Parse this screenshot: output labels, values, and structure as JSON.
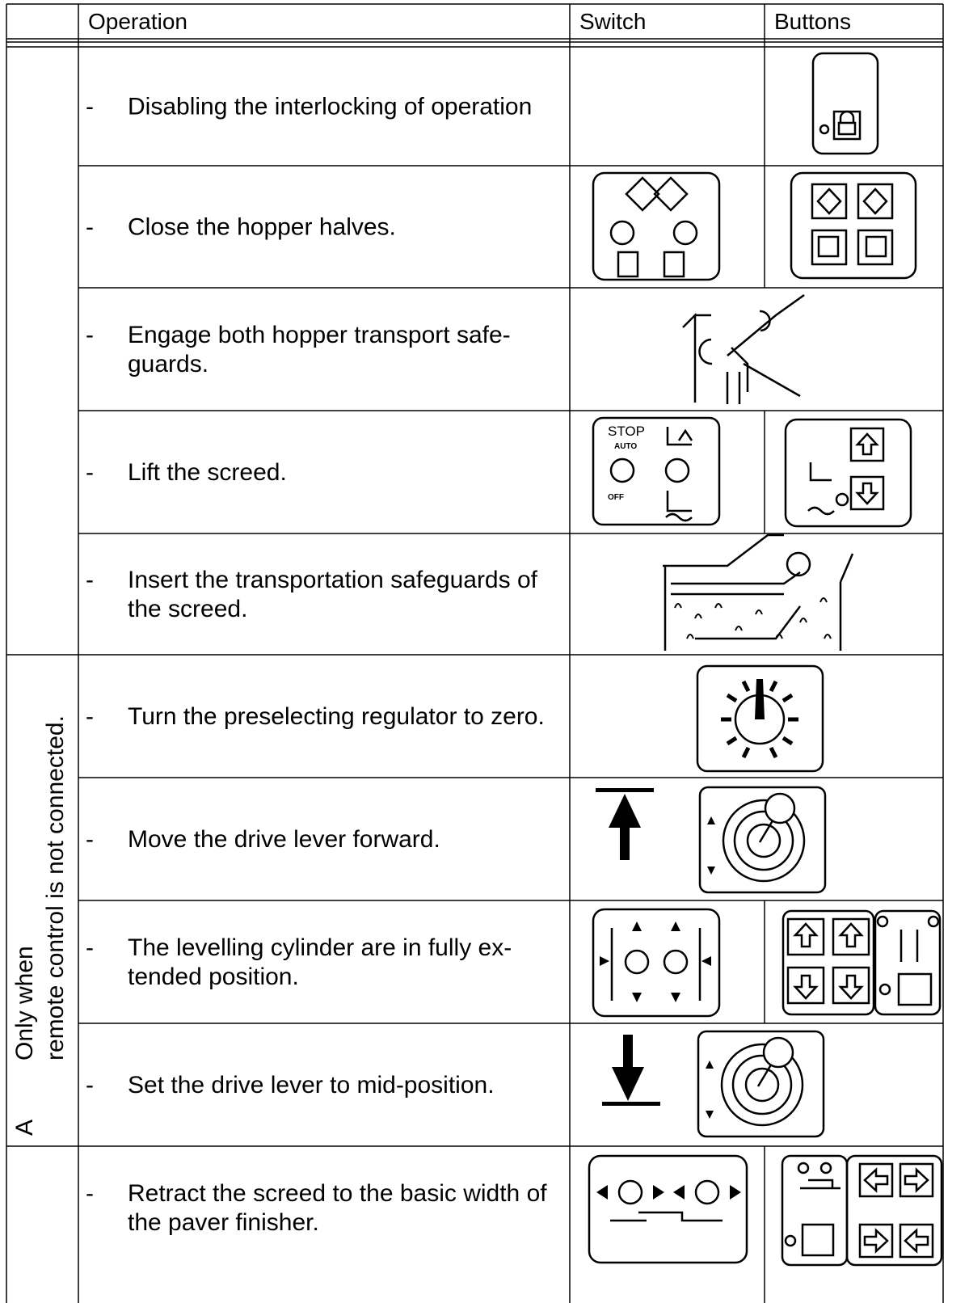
{
  "header": {
    "operation": "Operation",
    "switch": "Switch",
    "buttons": "Buttons"
  },
  "group_label": {
    "lines": [
      "Only when",
      "remote control is not connected."
    ],
    "marker": "A"
  },
  "rows": [
    {
      "bullet": "-",
      "lines": [
        "Disabling the interlocking of operation"
      ]
    },
    {
      "bullet": "-",
      "lines": [
        "Close the hopper halves."
      ]
    },
    {
      "bullet": "-",
      "lines": [
        "Engage both hopper transport safe-",
        "guards."
      ]
    },
    {
      "bullet": "-",
      "lines": [
        "Lift the screed."
      ]
    },
    {
      "bullet": "-",
      "lines": [
        "Insert the transportation safeguards of",
        "the screed."
      ]
    },
    {
      "bullet": "-",
      "lines": [
        "Turn the preselecting regulator to zero."
      ]
    },
    {
      "bullet": "-",
      "lines": [
        "Move the drive lever forward."
      ]
    },
    {
      "bullet": "-",
      "lines": [
        "The levelling cylinder are in fully ex-",
        "tended position."
      ]
    },
    {
      "bullet": "-",
      "lines": [
        "Set the drive lever to mid-position."
      ]
    },
    {
      "bullet": "-",
      "lines": [
        "Retract the screed to the basic width of",
        "the paver finisher."
      ]
    }
  ],
  "icon_labels": {
    "stop": "STOP",
    "auto": "AUTO",
    "off": "OFF"
  }
}
